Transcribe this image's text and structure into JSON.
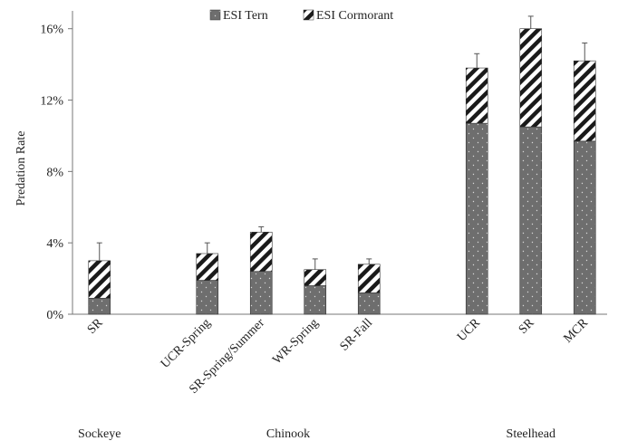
{
  "chart_data": {
    "type": "bar",
    "stacked": true,
    "ylabel": "Predation Rate",
    "ylim": [
      0,
      17
    ],
    "yticks": [
      0,
      4,
      8,
      12,
      16
    ],
    "ytick_labels": [
      "0%",
      "4%",
      "8%",
      "12%",
      "16%"
    ],
    "grid": false,
    "legend_position": "top-center",
    "categories": [
      "SR",
      "UCR-Spring",
      "SR-Spring/Summer",
      "WR-Spring",
      "SR-Fall",
      "UCR",
      "SR",
      "MCR"
    ],
    "slot_index": [
      0,
      2,
      3,
      4,
      5,
      7,
      8,
      9
    ],
    "groups": [
      {
        "label": "Sockeye",
        "categories": [
          0
        ]
      },
      {
        "label": "Chinook",
        "categories": [
          1,
          2,
          3,
          4
        ]
      },
      {
        "label": "Steelhead",
        "categories": [
          5,
          6,
          7
        ]
      }
    ],
    "series": [
      {
        "name": "ESI Tern",
        "color": "#6e6e6e",
        "pattern": "dots",
        "values": [
          0.9,
          1.9,
          2.4,
          1.6,
          1.2,
          10.7,
          10.5,
          9.7
        ]
      },
      {
        "name": "ESI Cormorant",
        "color": "#222222",
        "pattern": "diagonal-stripes",
        "values": [
          2.1,
          1.5,
          2.2,
          0.9,
          1.6,
          3.1,
          5.5,
          4.5
        ]
      }
    ],
    "error_top": [
      4.0,
      4.0,
      4.9,
      3.1,
      3.1,
      14.6,
      16.7,
      15.2
    ]
  }
}
